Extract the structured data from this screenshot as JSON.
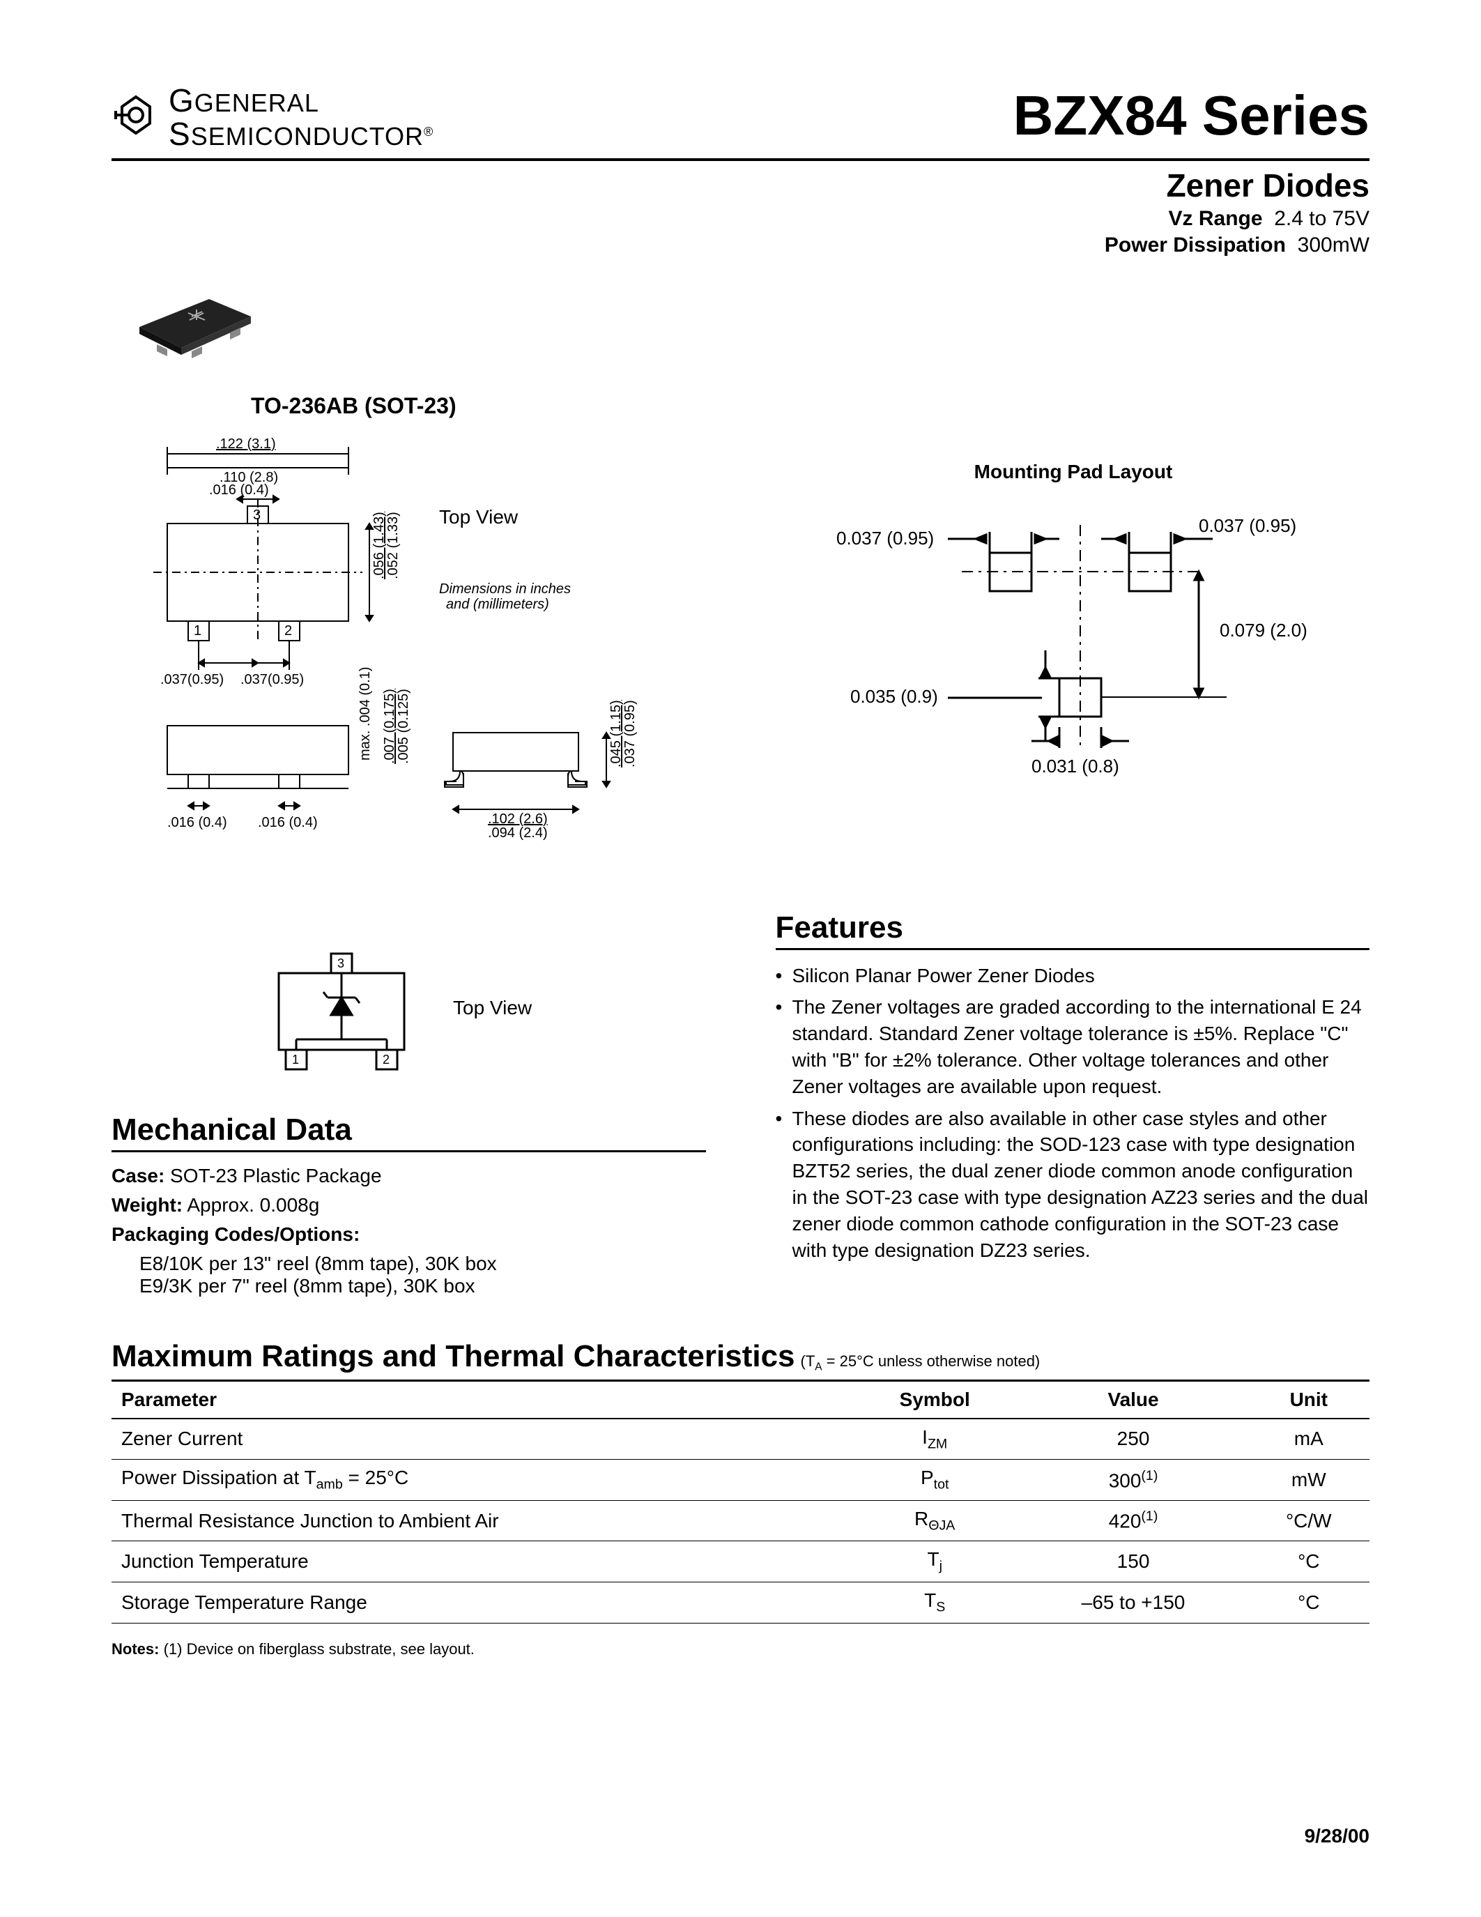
{
  "brand": {
    "line1_caps": "GENERAL",
    "line2_caps": "SEMICONDUCTOR",
    "registered": "®"
  },
  "title": "BZX84 Series",
  "subtitle": "Zener Diodes",
  "specs": {
    "vz_label": "Vz Range",
    "vz_value": "2.4 to 75V",
    "pd_label": "Power Dissipation",
    "pd_value": "300mW"
  },
  "package_name": "TO-236AB (SOT-23)",
  "top_view_label": "Top View",
  "dim_note_line1": "Dimensions in inches",
  "dim_note_line2": "and (millimeters)",
  "package_dims": {
    "width_max": ".122 (3.1)",
    "width_min": ".110 (2.8)",
    "pin_width": ".016 (0.4)",
    "body_h_max": ".056 (1.43)",
    "body_h_min": ".052 (1.33)",
    "pin_pitch_a": ".037(0.95)",
    "pin_pitch_b": ".037(0.95)",
    "standoff": "max. .004 (0.1)",
    "lead_h_max": ".007 (0.175)",
    "lead_h_min": ".005 (0.125)",
    "foot_a": ".016 (0.4)",
    "foot_b": ".016 (0.4)",
    "side_w_max": ".102 (2.6)",
    "side_w_min": ".094 (2.4)",
    "total_h_max": ".045 (1.15)",
    "total_h_min": ".037 (0.95)"
  },
  "mount_title": "Mounting Pad Layout",
  "mount_dims": {
    "pad_w_left": "0.037 (0.95)",
    "pad_w_right": "0.037 (0.95)",
    "gap_v": "0.079 (2.0)",
    "pad_h": "0.035 (0.9)",
    "pad_w_bottom": "0.031 (0.8)"
  },
  "mechanical": {
    "title": "Mechanical Data",
    "case_label": "Case:",
    "case_value": "SOT-23 Plastic Package",
    "weight_label": "Weight:",
    "weight_value": "Approx. 0.008g",
    "pkg_label": "Packaging Codes/Options:",
    "pkg_line1": "E8/10K per 13\" reel (8mm tape), 30K box",
    "pkg_line2": "E9/3K per 7\" reel (8mm tape), 30K box"
  },
  "features": {
    "title": "Features",
    "items": [
      "Silicon Planar Power Zener Diodes",
      "The Zener voltages are graded according to the international E 24 standard. Standard Zener voltage tolerance is ±5%. Replace \"C\" with \"B\" for ±2% tolerance. Other voltage tolerances and other Zener voltages are available upon request.",
      "These diodes are also available in other case styles and other configurations including: the SOD-123 case with type designation BZT52 series, the dual zener diode common anode configuration in the SOT-23 case with type designation AZ23 series and the dual zener diode common cathode configuration in the SOT-23 case with type designation DZ23 series."
    ]
  },
  "ratings": {
    "title": "Maximum Ratings and Thermal Characteristics",
    "cond_note": "(TA = 25°C unless otherwise noted)",
    "columns": [
      "Parameter",
      "Symbol",
      "Value",
      "Unit"
    ],
    "rows": [
      {
        "param": "Zener Current",
        "symbol_html": "I<span class='sub'>ZM</span>",
        "value": "250",
        "unit": "mA"
      },
      {
        "param": "Power Dissipation at T<span class='sub'>amb</span> = 25°C",
        "symbol_html": "P<span class='sub'>tot</span>",
        "value": "300<span class='sup'>(1)</span>",
        "unit": "mW"
      },
      {
        "param": "Thermal Resistance Junction to Ambient Air",
        "symbol_html": "R<span class='sub'>ΘJA</span>",
        "value": "420<span class='sup'>(1)</span>",
        "unit": "°C/W"
      },
      {
        "param": "Junction Temperature",
        "symbol_html": "T<span class='sub'>j</span>",
        "value": "150",
        "unit": "°C"
      },
      {
        "param": "Storage Temperature Range",
        "symbol_html": "T<span class='sub'>S</span>",
        "value": "–65 to +150",
        "unit": "°C"
      }
    ]
  },
  "footnote": {
    "label": "Notes:",
    "text": "(1) Device on fiberglass substrate, see layout."
  },
  "footer_date": "9/28/00",
  "schematic_pins": {
    "p1": "1",
    "p2": "2",
    "p3": "3"
  },
  "colors": {
    "text": "#000000",
    "background": "#ffffff",
    "rule": "#000000"
  }
}
